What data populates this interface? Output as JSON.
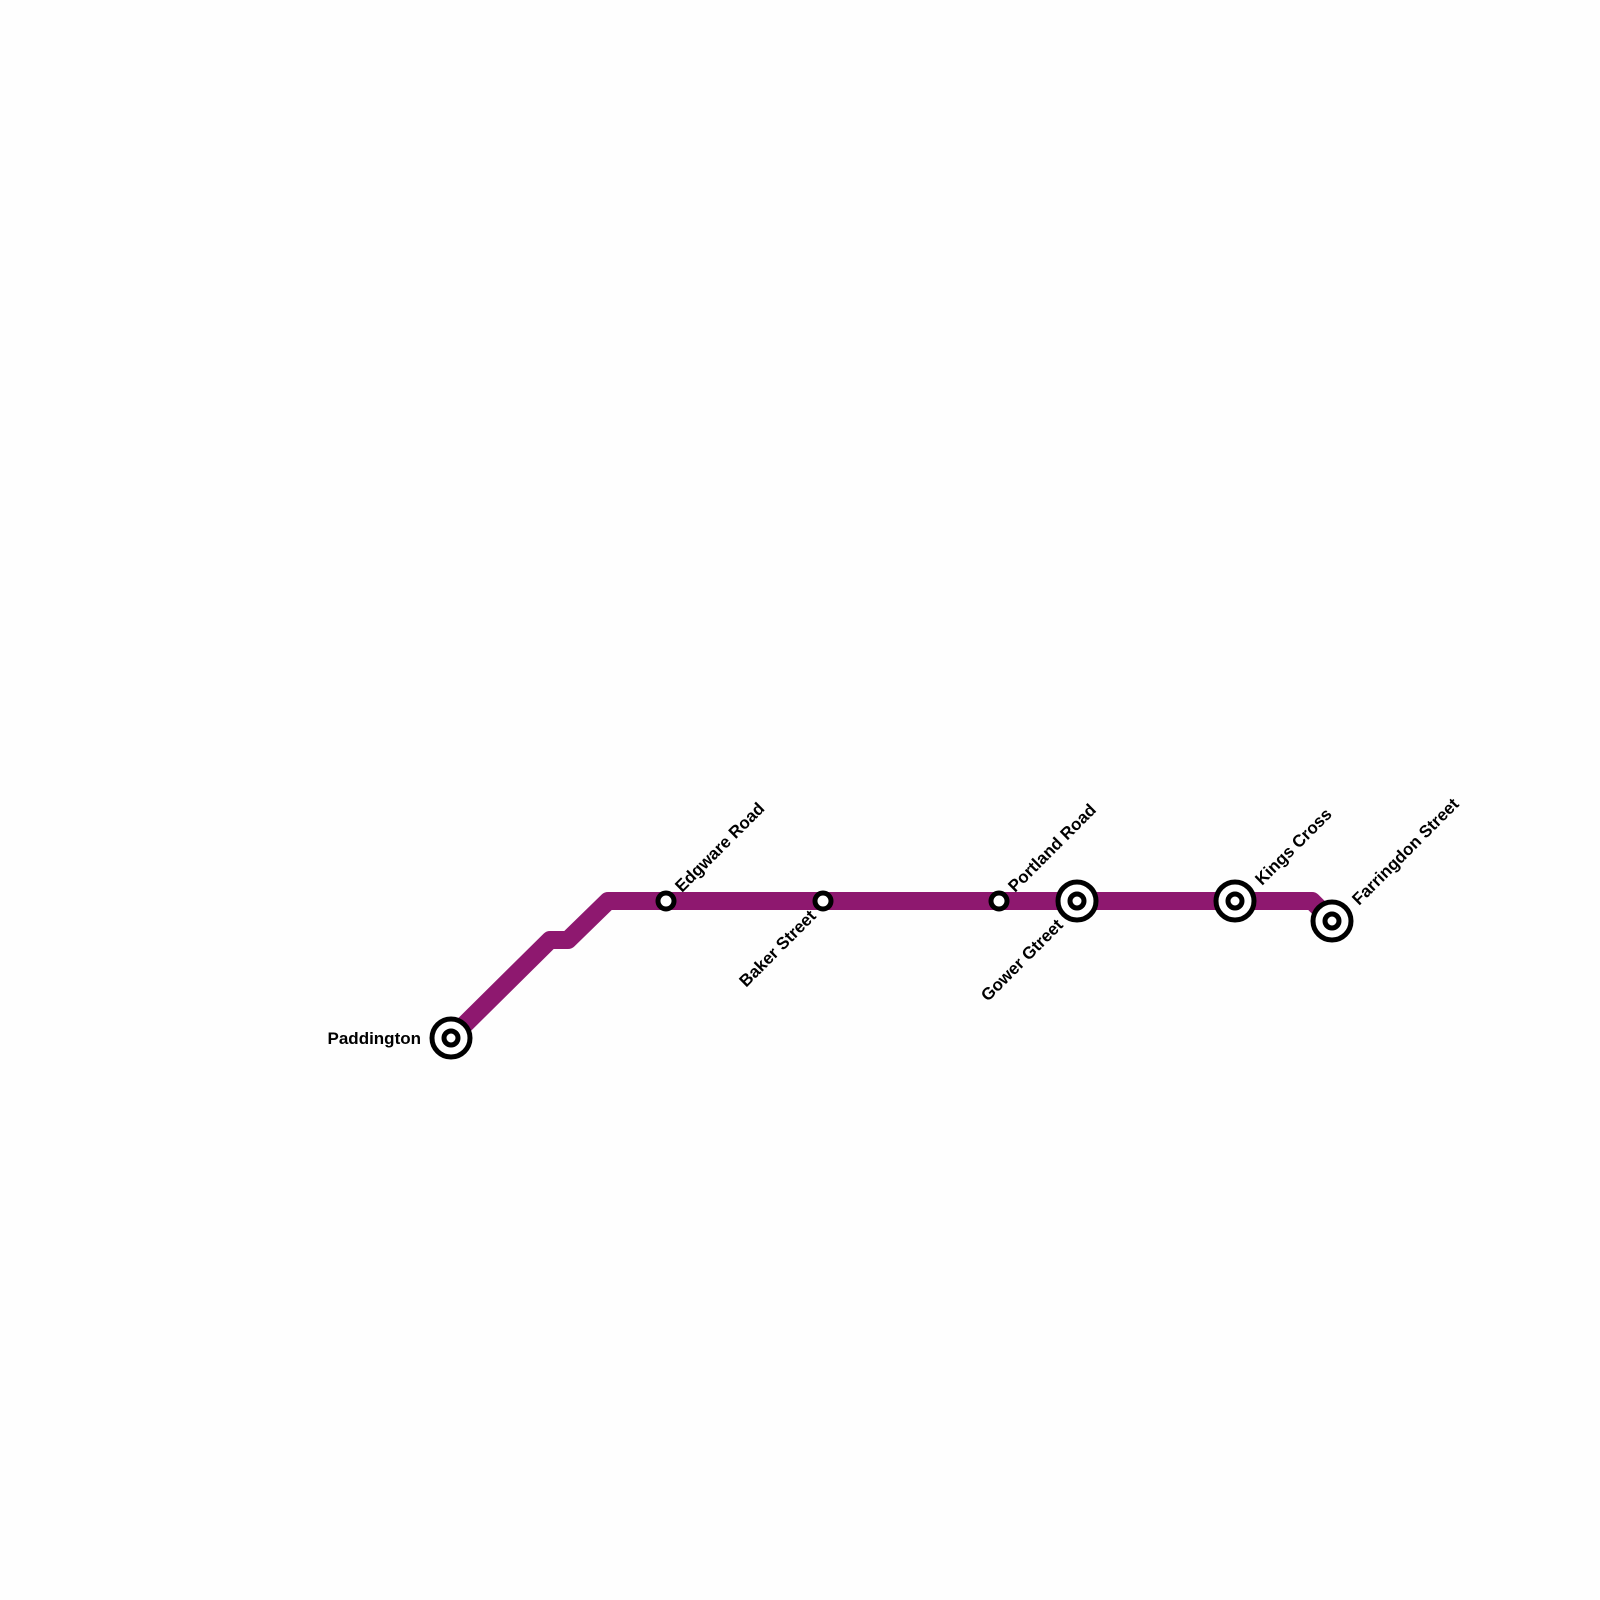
{
  "line": {
    "color": "#8e186f"
  },
  "stations": [
    {
      "name": "Paddington",
      "interchange": true,
      "label_side": "left"
    },
    {
      "name": "Edgware Road",
      "interchange": false,
      "label_side": "up-right"
    },
    {
      "name": "Baker Street",
      "interchange": false,
      "label_side": "down-left"
    },
    {
      "name": "Portland Road",
      "interchange": false,
      "label_side": "up-right"
    },
    {
      "name": "Gower Gtreet",
      "interchange": true,
      "label_side": "down-left"
    },
    {
      "name": "Kings Cross",
      "interchange": true,
      "label_side": "up-right"
    },
    {
      "name": "Farringdon Street",
      "interchange": true,
      "label_side": "up-right"
    }
  ]
}
